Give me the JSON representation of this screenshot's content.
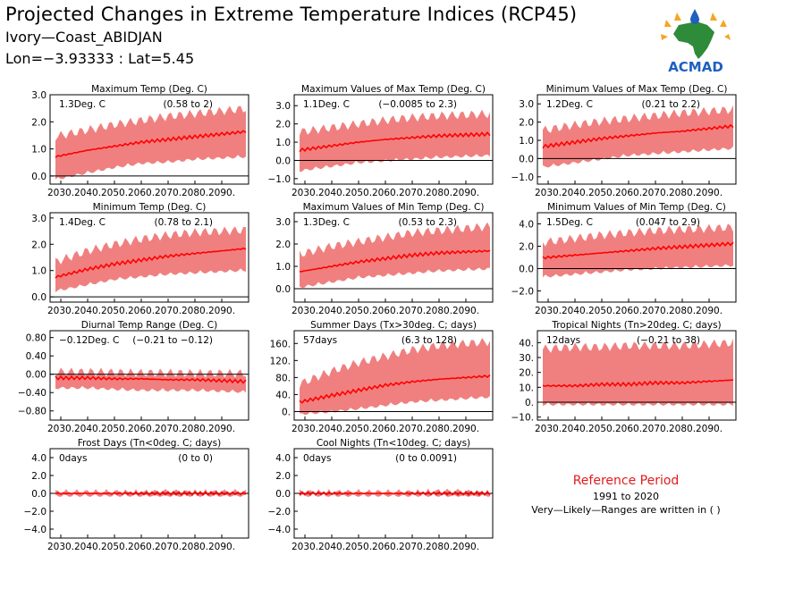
{
  "header": {
    "title": "Projected Changes in Extreme Temperature Indices (RCP45)",
    "location": "Ivory—Coast_ABIDJAN",
    "coords": "Lon=−3.93333 : Lat=5.45"
  },
  "logo": {
    "text": "ACMAD"
  },
  "reference": {
    "title": "Reference Period",
    "years": "1991 to 2020",
    "note": "Very—Likely—Ranges are written in ( )"
  },
  "colors": {
    "band": "#f08080",
    "line": "#ff0000",
    "zero": "#000000"
  },
  "chart_data": [
    {
      "type": "area",
      "title": "Maximum Temp (Deg. C)",
      "mean_label": "1.3Deg. C",
      "range_label": "(0.58 to 2)",
      "x": [
        2030,
        2040,
        2050,
        2060,
        2070,
        2080,
        2090
      ],
      "x_tick_labels": [
        "2030.",
        "2040.",
        "2050.",
        "2060.",
        "2070.",
        "2080.",
        "2090."
      ],
      "ylim": [
        -0.3,
        3.0
      ],
      "y_ticks": [
        0.0,
        1.0,
        2.0,
        3.0
      ],
      "y_tick_labels": [
        "0.0",
        "1.0",
        "2.0",
        "3.0"
      ],
      "series": [
        {
          "values": [
            0.75,
            0.95,
            1.1,
            1.25,
            1.35,
            1.45,
            1.55
          ]
        },
        {
          "values": [
            0.0,
            0.2,
            0.4,
            0.55,
            0.6,
            0.7,
            0.75
          ]
        },
        {
          "values": [
            1.5,
            1.7,
            1.9,
            2.05,
            2.2,
            2.3,
            2.4
          ]
        }
      ]
    },
    {
      "type": "area",
      "title": "Maximum Values of Max Temp (Deg. C)",
      "mean_label": "1.1Deg. C",
      "range_label": "(−0.0085 to 2.3)",
      "x": [
        2030,
        2040,
        2050,
        2060,
        2070,
        2080,
        2090
      ],
      "x_tick_labels": [
        "2030.",
        "2040.",
        "2050.",
        "2060.",
        "2070.",
        "2080.",
        "2090."
      ],
      "ylim": [
        -1.3,
        3.6
      ],
      "y_ticks": [
        -1.0,
        0.0,
        1.0,
        2.0,
        3.0
      ],
      "y_tick_labels": [
        "−1.0",
        "0.0",
        "1.0",
        "2.0",
        "3.0"
      ],
      "series": [
        {
          "values": [
            0.6,
            0.8,
            1.0,
            1.15,
            1.25,
            1.35,
            1.4
          ]
        },
        {
          "values": [
            -0.4,
            -0.2,
            0.0,
            0.1,
            0.2,
            0.3,
            0.35
          ]
        },
        {
          "values": [
            1.6,
            1.8,
            2.0,
            2.2,
            2.35,
            2.45,
            2.5
          ]
        }
      ]
    },
    {
      "type": "area",
      "title": "Minimum Values of Max Temp (Deg. C)",
      "mean_label": "1.2Deg. C",
      "range_label": "(0.21 to 2.2)",
      "x": [
        2030,
        2040,
        2050,
        2060,
        2070,
        2080,
        2090
      ],
      "x_tick_labels": [
        "2030.",
        "2040.",
        "2050.",
        "2060.",
        "2070.",
        "2080.",
        "2090."
      ],
      "ylim": [
        -1.4,
        3.5
      ],
      "y_ticks": [
        -1.0,
        0.0,
        1.0,
        2.0,
        3.0
      ],
      "y_tick_labels": [
        "−1.0",
        "0.0",
        "1.0",
        "2.0",
        "3.0"
      ],
      "series": [
        {
          "values": [
            0.7,
            0.9,
            1.1,
            1.25,
            1.4,
            1.5,
            1.65
          ]
        },
        {
          "values": [
            -0.3,
            -0.1,
            0.1,
            0.3,
            0.4,
            0.5,
            0.6
          ]
        },
        {
          "values": [
            1.6,
            1.85,
            2.05,
            2.2,
            2.35,
            2.5,
            2.6
          ]
        }
      ]
    },
    {
      "type": "area",
      "title": "Minimum Temp (Deg. C)",
      "mean_label": "1.4Deg. C",
      "range_label": "(0.78 to 2.1)",
      "x": [
        2030,
        2040,
        2050,
        2060,
        2070,
        2080,
        2090
      ],
      "x_tick_labels": [
        "2030.",
        "2040.",
        "2050.",
        "2060.",
        "2070.",
        "2080.",
        "2090."
      ],
      "ylim": [
        -0.2,
        3.2
      ],
      "y_ticks": [
        0.0,
        1.0,
        2.0,
        3.0
      ],
      "y_tick_labels": [
        "0.0",
        "1.0",
        "2.0",
        "3.0"
      ],
      "series": [
        {
          "values": [
            0.8,
            1.05,
            1.25,
            1.4,
            1.55,
            1.65,
            1.75
          ]
        },
        {
          "values": [
            0.35,
            0.55,
            0.75,
            0.85,
            0.95,
            1.0,
            1.05
          ]
        },
        {
          "values": [
            1.4,
            1.75,
            2.0,
            2.2,
            2.35,
            2.45,
            2.5
          ]
        }
      ]
    },
    {
      "type": "area",
      "title": "Maximum Values of Min Temp (Deg. C)",
      "mean_label": "1.3Deg. C",
      "range_label": "(0.53 to 2.3)",
      "x": [
        2030,
        2040,
        2050,
        2060,
        2070,
        2080,
        2090
      ],
      "x_tick_labels": [
        "2030.",
        "2040.",
        "2050.",
        "2060.",
        "2070.",
        "2080.",
        "2090."
      ],
      "ylim": [
        -0.6,
        3.4
      ],
      "y_ticks": [
        0.0,
        1.0,
        2.0,
        3.0
      ],
      "y_tick_labels": [
        "0.0",
        "1.0",
        "2.0",
        "3.0"
      ],
      "series": [
        {
          "values": [
            0.8,
            1.0,
            1.2,
            1.35,
            1.5,
            1.6,
            1.65
          ]
        },
        {
          "values": [
            0.2,
            0.4,
            0.6,
            0.7,
            0.8,
            0.9,
            0.95
          ]
        },
        {
          "values": [
            1.6,
            1.9,
            2.1,
            2.3,
            2.5,
            2.6,
            2.7
          ]
        }
      ]
    },
    {
      "type": "area",
      "title": "Minimum Values of Min Temp (Deg. C)",
      "mean_label": "1.5Deg. C",
      "range_label": "(0.047 to 2.9)",
      "x": [
        2030,
        2040,
        2050,
        2060,
        2070,
        2080,
        2090
      ],
      "x_tick_labels": [
        "2030.",
        "2040.",
        "2050.",
        "2060.",
        "2070.",
        "2080.",
        "2090."
      ],
      "ylim": [
        -3.0,
        5.0
      ],
      "y_ticks": [
        -2.0,
        0.0,
        2.0,
        4.0
      ],
      "y_tick_labels": [
        "−2.0",
        "0.0",
        "2.0",
        "4.0"
      ],
      "series": [
        {
          "values": [
            1.0,
            1.2,
            1.4,
            1.6,
            1.8,
            1.95,
            2.1
          ]
        },
        {
          "values": [
            -0.5,
            -0.3,
            -0.1,
            0.1,
            0.2,
            0.3,
            0.4
          ]
        },
        {
          "values": [
            2.4,
            2.7,
            3.0,
            3.2,
            3.4,
            3.5,
            3.6
          ]
        }
      ]
    },
    {
      "type": "area",
      "title": "Diurnal Temp Range (Deg. C)",
      "mean_label": "−0.12Deg. C",
      "range_label": "(−0.21 to −0.12)",
      "x": [
        2030,
        2040,
        2050,
        2060,
        2070,
        2080,
        2090
      ],
      "x_tick_labels": [
        "2030.",
        "2040.",
        "2050.",
        "2060.",
        "2070.",
        "2080.",
        "2090."
      ],
      "ylim": [
        -1.0,
        0.95
      ],
      "y_ticks": [
        -0.8,
        -0.4,
        0.0,
        0.4,
        0.8
      ],
      "y_tick_labels": [
        "−0.80",
        "−0.40",
        "0.00",
        "0.40",
        "0.80"
      ],
      "series": [
        {
          "values": [
            -0.08,
            -0.08,
            -0.1,
            -0.1,
            -0.12,
            -0.12,
            -0.14
          ]
        },
        {
          "values": [
            -0.25,
            -0.25,
            -0.28,
            -0.3,
            -0.3,
            -0.3,
            -0.32
          ]
        },
        {
          "values": [
            0.05,
            0.05,
            0.04,
            0.03,
            0.03,
            0.02,
            0.02
          ]
        }
      ]
    },
    {
      "type": "area",
      "title": "Summer Days (Tx>30deg. C; days)",
      "mean_label": "57days",
      "range_label": "(6.3 to 128)",
      "x": [
        2030,
        2040,
        2050,
        2060,
        2070,
        2080,
        2090
      ],
      "x_tick_labels": [
        "2030.",
        "2040.",
        "2050.",
        "2060.",
        "2070.",
        "2080.",
        "2090."
      ],
      "ylim": [
        -20,
        190
      ],
      "y_ticks": [
        0,
        40,
        80,
        120,
        160
      ],
      "y_tick_labels": [
        "0.",
        "40.",
        "80.",
        "120.",
        "160."
      ],
      "series": [
        {
          "values": [
            25,
            38,
            50,
            62,
            70,
            76,
            80
          ]
        },
        {
          "values": [
            0,
            5,
            12,
            20,
            28,
            32,
            36
          ]
        },
        {
          "values": [
            70,
            95,
            115,
            130,
            145,
            155,
            160
          ]
        }
      ]
    },
    {
      "type": "area",
      "title": "Tropical Nights (Tn>20deg. C; days)",
      "mean_label": "12days",
      "range_label": "(−0.21 to 38)",
      "x": [
        2030,
        2040,
        2050,
        2060,
        2070,
        2080,
        2090
      ],
      "x_tick_labels": [
        "2030.",
        "2040.",
        "2050.",
        "2060.",
        "2070.",
        "2080.",
        "2090."
      ],
      "ylim": [
        -12,
        48
      ],
      "y_ticks": [
        -10,
        0,
        10,
        20,
        30,
        40
      ],
      "y_tick_labels": [
        "−10.",
        "0.",
        "10.",
        "20.",
        "30.",
        "40."
      ],
      "series": [
        {
          "values": [
            11,
            11,
            12,
            12,
            13,
            13,
            14
          ]
        },
        {
          "values": [
            0,
            0,
            0,
            0,
            0,
            0,
            0
          ]
        },
        {
          "values": [
            36,
            37,
            37,
            38,
            38,
            38,
            39
          ]
        }
      ]
    },
    {
      "type": "area",
      "title": "Frost Days (Tn<0deg. C; days)",
      "mean_label": "0days",
      "range_label": "(0 to 0)",
      "x": [
        2030,
        2040,
        2050,
        2060,
        2070,
        2080,
        2090
      ],
      "x_tick_labels": [
        "2030.",
        "2040.",
        "2050.",
        "2060.",
        "2070.",
        "2080.",
        "2090."
      ],
      "ylim": [
        -5.0,
        5.0
      ],
      "y_ticks": [
        -4.0,
        -2.0,
        0.0,
        2.0,
        4.0
      ],
      "y_tick_labels": [
        "−4.0",
        "−2.0",
        "0.0",
        "2.0",
        "4.0"
      ],
      "series": [
        {
          "values": [
            0,
            0,
            0,
            0,
            0,
            0,
            0
          ]
        },
        {
          "values": [
            0,
            0,
            0,
            0,
            0,
            0,
            0
          ]
        },
        {
          "values": [
            0,
            0,
            0,
            0,
            0,
            0,
            0
          ]
        }
      ]
    },
    {
      "type": "area",
      "title": "Cool Nights (Tn<10deg. C; days)",
      "mean_label": "0days",
      "range_label": "(0 to 0.0091)",
      "x": [
        2030,
        2040,
        2050,
        2060,
        2070,
        2080,
        2090
      ],
      "x_tick_labels": [
        "2030.",
        "2040.",
        "2050.",
        "2060.",
        "2070.",
        "2080.",
        "2090."
      ],
      "ylim": [
        -5.0,
        5.0
      ],
      "y_ticks": [
        -4.0,
        -2.0,
        0.0,
        2.0,
        4.0
      ],
      "y_tick_labels": [
        "−4.0",
        "−2.0",
        "0.0",
        "2.0",
        "4.0"
      ],
      "series": [
        {
          "values": [
            0,
            0,
            0,
            0,
            0,
            0,
            0
          ]
        },
        {
          "values": [
            0,
            0,
            0,
            0,
            0,
            0,
            0
          ]
        },
        {
          "values": [
            0,
            0,
            0,
            0,
            0,
            0.1,
            0
          ]
        }
      ]
    }
  ]
}
